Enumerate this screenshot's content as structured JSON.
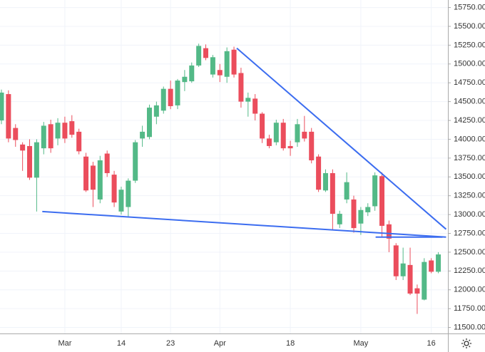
{
  "chart_data": {
    "type": "candlestick",
    "categories": [
      null,
      null,
      null,
      null,
      null,
      null,
      null,
      null,
      null,
      "Mar",
      null,
      null,
      null,
      null,
      null,
      null,
      null,
      "14",
      null,
      null,
      null,
      null,
      null,
      null,
      "23",
      null,
      null,
      null,
      null,
      null,
      null,
      "Apr",
      null,
      null,
      null,
      null,
      null,
      null,
      null,
      null,
      null,
      "18",
      null,
      null,
      null,
      null,
      null,
      null,
      null,
      null,
      null,
      "May",
      null,
      null,
      null,
      null,
      null,
      null,
      null,
      null,
      null,
      "16",
      null
    ],
    "open": [
      14250,
      14600,
      14150,
      13930,
      13910,
      13490,
      13880,
      14200,
      14010,
      14220,
      14240,
      14100,
      13770,
      13650,
      13200,
      13810,
      13530,
      13040,
      13100,
      13450,
      14010,
      14030,
      14300,
      14380,
      14670,
      14450,
      14760,
      14770,
      14980,
      15210,
      14860,
      14920,
      14830,
      15190,
      14880,
      14500,
      14540,
      14340,
      14010,
      13960,
      14220,
      13910,
      13960,
      14100,
      14100,
      13770,
      13320,
      13550,
      12870,
      13200,
      13200,
      12880,
      13030,
      13110,
      13510,
      12870,
      12590,
      12180,
      12330,
      12020,
      11870,
      12390,
      12240
    ],
    "high": [
      14660,
      14650,
      14200,
      13960,
      14000,
      14000,
      14230,
      14260,
      14280,
      14300,
      14320,
      14140,
      13820,
      13700,
      13780,
      13850,
      13580,
      13370,
      13480,
      13990,
      14180,
      14460,
      14500,
      14700,
      14780,
      14800,
      14920,
      15020,
      15270,
      15260,
      15120,
      15000,
      15220,
      15230,
      14950,
      14620,
      14600,
      14360,
      14060,
      14260,
      14270,
      13980,
      14270,
      14310,
      14150,
      13800,
      13600,
      13600,
      13050,
      13560,
      13250,
      13100,
      13150,
      13560,
      13560,
      12920,
      12620,
      12560,
      12560,
      12070,
      12420,
      12420,
      12500
    ],
    "low": [
      14200,
      13960,
      13900,
      13580,
      13460,
      13040,
      13800,
      13820,
      13920,
      13950,
      14020,
      13800,
      13300,
      13100,
      13150,
      13500,
      13100,
      13000,
      12960,
      13420,
      13900,
      14000,
      14200,
      14340,
      14400,
      14400,
      14640,
      14750,
      14960,
      15050,
      14820,
      14760,
      14750,
      14820,
      14420,
      14300,
      14250,
      13950,
      13880,
      13920,
      13850,
      13780,
      13900,
      13970,
      13680,
      13300,
      13300,
      12800,
      12820,
      13150,
      12760,
      12730,
      12980,
      13050,
      12700,
      12500,
      12130,
      12130,
      11930,
      11680,
      11860,
      12220,
      12220
    ],
    "close": [
      14620,
      14010,
      13990,
      13850,
      13490,
      13960,
      14180,
      13880,
      14220,
      14010,
      14060,
      13840,
      13320,
      13330,
      13720,
      13550,
      13160,
      13330,
      13450,
      13960,
      14100,
      14420,
      14450,
      14670,
      14440,
      14780,
      14830,
      14980,
      15240,
      15080,
      15090,
      14850,
      15170,
      14860,
      14500,
      14550,
      14340,
      14010,
      13910,
      14220,
      13880,
      13880,
      14200,
      14010,
      13720,
      13330,
      13550,
      13010,
      13010,
      13430,
      12820,
      13060,
      13100,
      13520,
      12850,
      12680,
      12180,
      12350,
      11950,
      11950,
      12370,
      12240,
      12470
    ],
    "up_color": "#53b987",
    "down_color": "#eb4d5c",
    "ylim": [
      11420,
      15850
    ],
    "yticks": [
      {
        "value": 11500,
        "label": "11500.00"
      },
      {
        "value": 11750,
        "label": "11750.00"
      },
      {
        "value": 12000,
        "label": "12000.00"
      },
      {
        "value": 12250,
        "label": "12250.00"
      },
      {
        "value": 12500,
        "label": "12500.00"
      },
      {
        "value": 12750,
        "label": "12750.00"
      },
      {
        "value": 13000,
        "label": "13000.00"
      },
      {
        "value": 13250,
        "label": "13250.00"
      },
      {
        "value": 13500,
        "label": "13500.00"
      },
      {
        "value": 13750,
        "label": "13750.00"
      },
      {
        "value": 14000,
        "label": "14000.00"
      },
      {
        "value": 14250,
        "label": "14250.00"
      },
      {
        "value": 14500,
        "label": "14500.00"
      },
      {
        "value": 14750,
        "label": "14750.00"
      },
      {
        "value": 15000,
        "label": "15000.00"
      },
      {
        "value": 15250,
        "label": "15250.00"
      },
      {
        "value": 15500,
        "label": "15500.00"
      },
      {
        "value": 15750,
        "label": "15750.00"
      }
    ],
    "grid": true,
    "trendline_color": "#3c6df0",
    "trendlines": [
      {
        "x": [
          5.8,
          63.1
        ],
        "values": [
          13040,
          12700
        ]
      },
      {
        "x": [
          33.4,
          63.1
        ],
        "values": [
          15210,
          12805
        ]
      },
      {
        "x": [
          53.1,
          62.6
        ],
        "values": [
          12700,
          12700
        ]
      }
    ]
  }
}
